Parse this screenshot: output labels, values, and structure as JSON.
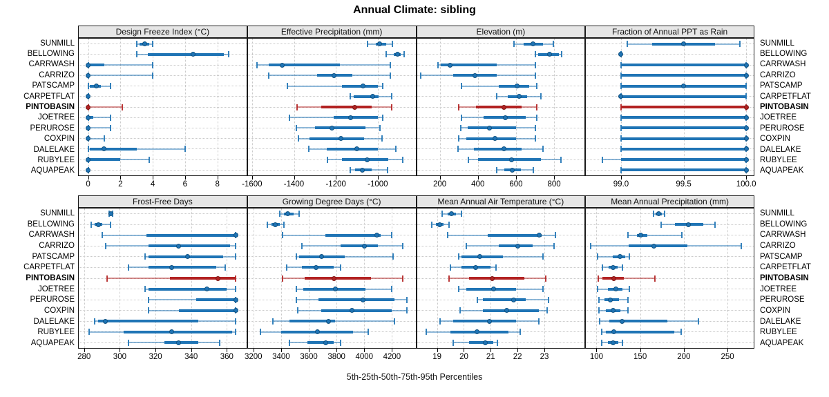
{
  "title": "Annual Climate: sibling",
  "footer": "5th-25th-50th-75th-95th Percentiles",
  "colors": {
    "series": "#1f74b5",
    "series_edge": "#11507e",
    "highlight": "#b22222",
    "highlight_edge": "#7a1715",
    "strip_bg": "#e6e6e6",
    "grid": "#c9c9c9",
    "panel_border": "#1a1a1a"
  },
  "chart_data": {
    "type": "scatter",
    "variant": "trellis percentile range plot (whisker 5th-95th, bar 25th-75th, dot median)",
    "layout": {
      "rows": 2,
      "cols": 4,
      "grid": "dotted",
      "legend": "none"
    },
    "categories": [
      "SUNMILL",
      "BELLOWING",
      "CARRWASH",
      "CARRIZO",
      "PATSCAMP",
      "CARPETFLAT",
      "PINTOBASIN",
      "JOETREE",
      "PERUROSE",
      "COXPIN",
      "DALELAKE",
      "RUBYLEE",
      "AQUAPEAK"
    ],
    "highlight_category": "PINTOBASIN",
    "percentile_levels": [
      5,
      25,
      50,
      75,
      95
    ],
    "panels": [
      {
        "title": "Design Freeze Index (°C)",
        "xlim": [
          -0.58,
          9.8
        ],
        "tick_values": [
          0,
          2,
          4,
          6,
          8
        ],
        "tick_labels": [
          "0",
          "2",
          "4",
          "6",
          "8"
        ],
        "values": [
          [
            3.0,
            3.2,
            3.5,
            3.8,
            4.0
          ],
          [
            3.0,
            3.7,
            6.5,
            8.4,
            8.7
          ],
          [
            0,
            0,
            0,
            1.0,
            4.0
          ],
          [
            0,
            0,
            0,
            0,
            4.0
          ],
          [
            0,
            0.1,
            0.5,
            0.8,
            1.4
          ],
          [
            0,
            0,
            0,
            0,
            0
          ],
          [
            0,
            0,
            0,
            0,
            2.1
          ],
          [
            0,
            0,
            0,
            0.3,
            1.4
          ],
          [
            0,
            0,
            0,
            0,
            1.4
          ],
          [
            0,
            0,
            0,
            0,
            1.0
          ],
          [
            0,
            0.1,
            1.0,
            3.0,
            6.0
          ],
          [
            0,
            0,
            0,
            2.0,
            3.8
          ],
          [
            0,
            0,
            0,
            0,
            0
          ]
        ]
      },
      {
        "title": "Effective Precipitation (mm)",
        "xlim": [
          -1620,
          -820
        ],
        "tick_values": [
          -1600,
          -1400,
          -1200,
          -1000
        ],
        "tick_labels": [
          "-1600",
          "-1400",
          "-1200",
          "-1000"
        ],
        "values": [
          [
            -1050,
            -1010,
            -990,
            -960,
            -930
          ],
          [
            -960,
            -925,
            -905,
            -890,
            -875
          ],
          [
            -1575,
            -1520,
            -1455,
            -1180,
            -940
          ],
          [
            -1520,
            -1290,
            -1210,
            -1120,
            -940
          ],
          [
            -1430,
            -1170,
            -1070,
            -1000,
            -975
          ],
          [
            -1130,
            -1115,
            -1025,
            -995,
            -935
          ],
          [
            -1385,
            -1270,
            -1110,
            -1030,
            -935
          ],
          [
            -1420,
            -1210,
            -1130,
            -1000,
            -975
          ],
          [
            -1390,
            -1300,
            -1220,
            -1060,
            -990
          ],
          [
            -1380,
            -1325,
            -1175,
            -1065,
            -980
          ],
          [
            -1330,
            -1245,
            -1100,
            -1000,
            -915
          ],
          [
            -1240,
            -1170,
            -1050,
            -950,
            -880
          ],
          [
            -1130,
            -1110,
            -1075,
            -1030,
            -955
          ]
        ]
      },
      {
        "title": "Elevation (m)",
        "xlim": [
          80,
          960
        ],
        "tick_values": [
          200,
          400,
          600,
          800
        ],
        "tick_labels": [
          "200",
          "400",
          "600",
          "800"
        ],
        "values": [
          [
            590,
            640,
            690,
            740,
            795
          ],
          [
            700,
            715,
            775,
            825,
            840
          ],
          [
            190,
            205,
            255,
            500,
            700
          ],
          [
            100,
            270,
            385,
            500,
            700
          ],
          [
            315,
            510,
            605,
            670,
            710
          ],
          [
            500,
            555,
            615,
            660,
            730
          ],
          [
            300,
            390,
            535,
            630,
            710
          ],
          [
            315,
            430,
            545,
            650,
            710
          ],
          [
            310,
            345,
            460,
            600,
            700
          ],
          [
            300,
            340,
            490,
            600,
            700
          ],
          [
            295,
            380,
            535,
            630,
            740
          ],
          [
            350,
            400,
            575,
            730,
            835
          ],
          [
            500,
            540,
            580,
            625,
            690
          ]
        ]
      },
      {
        "title": "Fraction of Annual PPT as Rain",
        "xlim": [
          98.72,
          100.06
        ],
        "tick_values": [
          99.0,
          99.5,
          100.0
        ],
        "tick_labels": [
          "99.0",
          "99.5",
          "100.0"
        ],
        "values": [
          [
            99.05,
            99.25,
            99.5,
            99.75,
            99.95
          ],
          [
            99.0,
            99.0,
            99.0,
            99.0,
            99.0
          ],
          [
            99.0,
            99.0,
            100.0,
            100.0,
            100.0
          ],
          [
            99.0,
            99.0,
            100.0,
            100.0,
            100.0
          ],
          [
            99.0,
            99.0,
            99.5,
            100.0,
            100.0
          ],
          [
            99.0,
            99.0,
            99.0,
            100.0,
            100.0
          ],
          [
            99.0,
            99.0,
            100.0,
            100.0,
            100.0
          ],
          [
            99.0,
            99.0,
            100.0,
            100.0,
            100.0
          ],
          [
            99.0,
            99.0,
            100.0,
            100.0,
            100.0
          ],
          [
            99.0,
            99.0,
            100.0,
            100.0,
            100.0
          ],
          [
            99.0,
            99.0,
            100.0,
            100.0,
            100.0
          ],
          [
            98.85,
            99.0,
            100.0,
            100.0,
            100.0
          ],
          [
            99.0,
            99.0,
            100.0,
            100.0,
            100.0
          ]
        ]
      },
      {
        "title": "Frost-Free Days",
        "xlim": [
          277,
          371
        ],
        "tick_values": [
          280,
          300,
          320,
          340,
          360
        ],
        "tick_labels": [
          "280",
          "300",
          "320",
          "340",
          "360"
        ],
        "values": [
          [
            294,
            294.5,
            295,
            295.5,
            296
          ],
          [
            284,
            286,
            288,
            290,
            295
          ],
          [
            290,
            315,
            365,
            365,
            365
          ],
          [
            292,
            316,
            333,
            362,
            365
          ],
          [
            314,
            316,
            338,
            358,
            365
          ],
          [
            305,
            316,
            329,
            354,
            359
          ],
          [
            293,
            328,
            355,
            365,
            365
          ],
          [
            314,
            316,
            349,
            360,
            365
          ],
          [
            316,
            343,
            365,
            365,
            365
          ],
          [
            316,
            333,
            365,
            365,
            365
          ],
          [
            286,
            288,
            292,
            344,
            365
          ],
          [
            283,
            302,
            329,
            363,
            365
          ],
          [
            305,
            325,
            333,
            344,
            356
          ]
        ]
      },
      {
        "title": "Growing Degree Days (°C)",
        "xlim": [
          3160,
          4370
        ],
        "tick_values": [
          3200,
          3400,
          3600,
          3800,
          4000,
          4200
        ],
        "tick_labels": [
          "3200",
          "3400",
          "3600",
          "3800",
          "4000",
          "4200"
        ],
        "values": [
          [
            3390,
            3420,
            3450,
            3490,
            3530
          ],
          [
            3300,
            3330,
            3360,
            3390,
            3420
          ],
          [
            3410,
            3720,
            4090,
            4120,
            4200
          ],
          [
            3550,
            3830,
            4000,
            4100,
            4280
          ],
          [
            3510,
            3530,
            3690,
            3860,
            4210
          ],
          [
            3440,
            3550,
            3650,
            3780,
            3830
          ],
          [
            3410,
            3570,
            3780,
            4050,
            4280
          ],
          [
            3510,
            3560,
            3790,
            4010,
            4200
          ],
          [
            3510,
            3670,
            3990,
            4220,
            4310
          ],
          [
            3520,
            3690,
            3910,
            4200,
            4310
          ],
          [
            3340,
            3460,
            3740,
            3790,
            4220
          ],
          [
            3250,
            3400,
            3660,
            3920,
            4030
          ],
          [
            3460,
            3590,
            3720,
            3780,
            3830
          ]
        ]
      },
      {
        "title": "Mean Annual Air Temperature (°C)",
        "xlim": [
          18.25,
          24.5
        ],
        "tick_values": [
          19,
          20,
          21,
          22,
          23
        ],
        "tick_labels": [
          "19",
          "20",
          "21",
          "22",
          "23"
        ],
        "values": [
          [
            19.2,
            19.4,
            19.55,
            19.7,
            19.9
          ],
          [
            18.8,
            18.95,
            19.1,
            19.25,
            19.45
          ],
          [
            19.4,
            20.9,
            22.8,
            22.9,
            23.4
          ],
          [
            20.1,
            21.3,
            22.0,
            22.55,
            23.35
          ],
          [
            19.8,
            19.9,
            20.6,
            21.45,
            22.95
          ],
          [
            19.5,
            19.9,
            20.45,
            21.0,
            21.2
          ],
          [
            19.45,
            20.2,
            21.05,
            22.25,
            23.05
          ],
          [
            19.8,
            20.1,
            21.1,
            21.95,
            22.95
          ],
          [
            20.5,
            20.7,
            21.85,
            22.3,
            23.15
          ],
          [
            19.85,
            20.7,
            21.6,
            22.8,
            23.1
          ],
          [
            19.1,
            19.6,
            20.95,
            21.95,
            22.8
          ],
          [
            18.6,
            19.5,
            20.5,
            21.65,
            22.1
          ],
          [
            19.6,
            20.2,
            20.8,
            21.1,
            21.25
          ]
        ]
      },
      {
        "title": "Mean Annual Precipitation (mm)",
        "xlim": [
          88,
          280
        ],
        "tick_values": [
          100,
          150,
          200,
          250
        ],
        "tick_labels": [
          "100",
          "150",
          "200",
          "250"
        ],
        "values": [
          [
            165,
            168,
            171,
            175,
            178
          ],
          [
            174,
            190,
            205,
            222,
            236
          ],
          [
            136,
            146,
            151,
            158,
            198
          ],
          [
            93,
            137,
            166,
            204,
            266
          ],
          [
            101,
            119,
            127,
            133,
            138
          ],
          [
            107,
            114,
            119,
            124,
            130
          ],
          [
            102,
            107,
            120,
            131,
            167
          ],
          [
            101,
            113,
            122,
            130,
            138
          ],
          [
            103,
            109,
            116,
            126,
            136
          ],
          [
            103,
            111,
            119,
            127,
            136
          ],
          [
            104,
            115,
            129,
            181,
            217
          ],
          [
            106,
            111,
            120,
            189,
            197
          ],
          [
            106,
            113,
            119,
            125,
            130
          ]
        ]
      }
    ]
  }
}
